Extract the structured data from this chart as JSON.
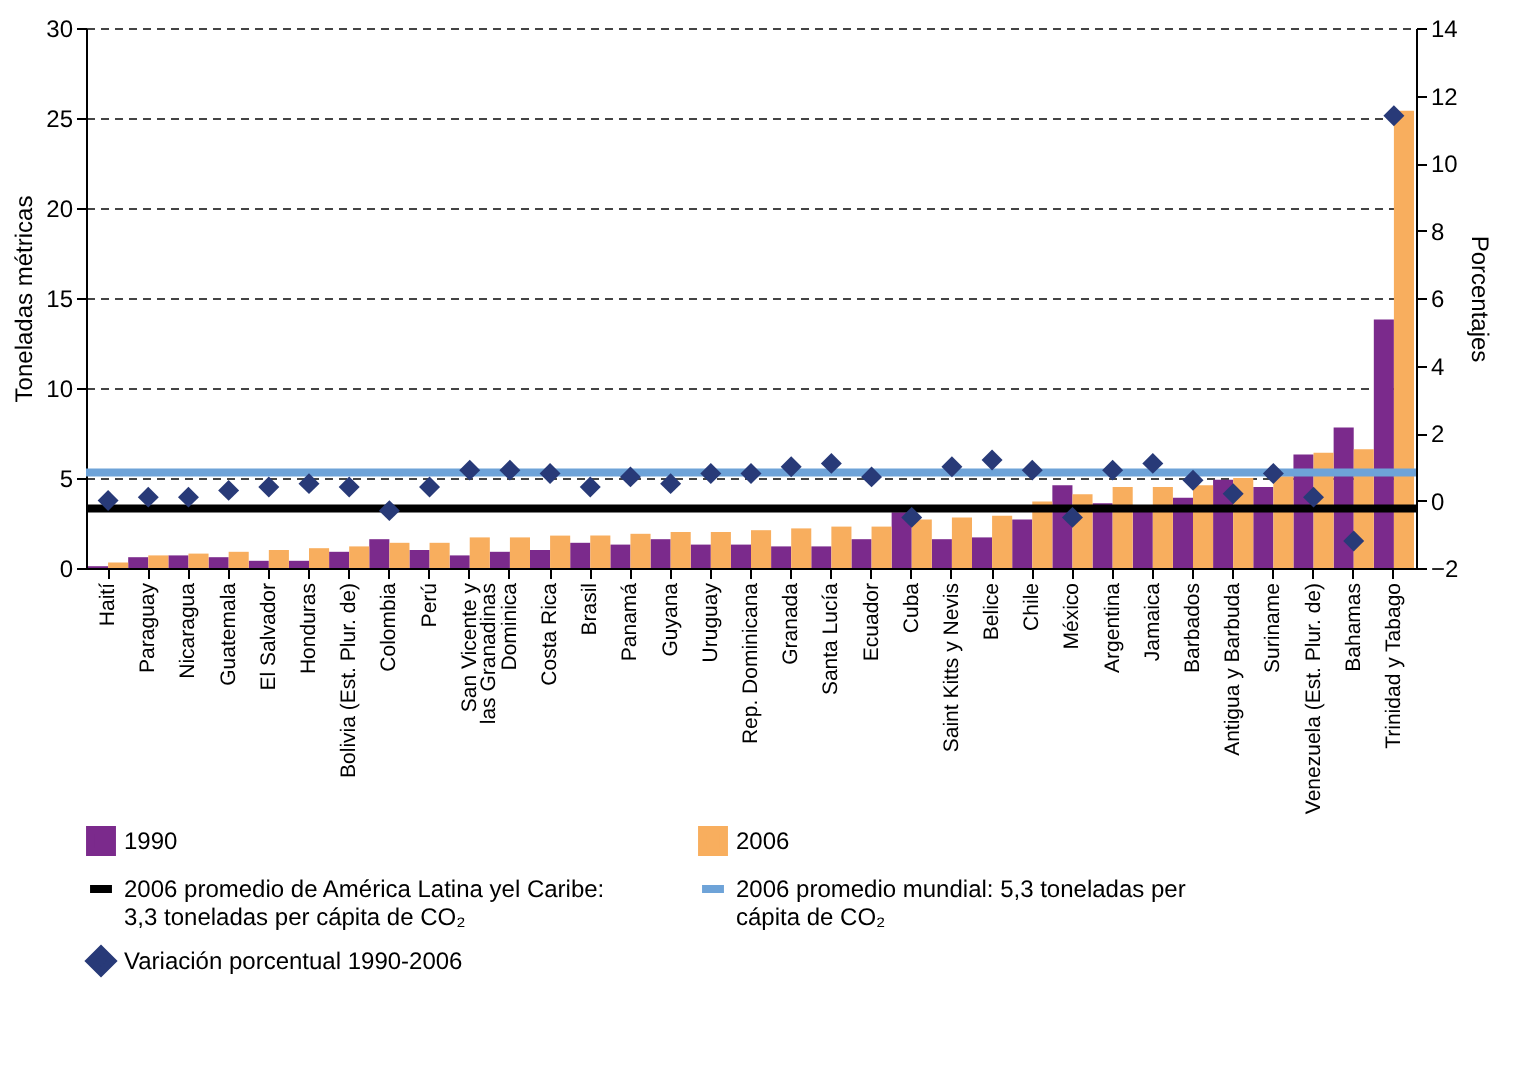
{
  "chart_data": {
    "type": "bar",
    "categories": [
      "Haití",
      "Paraguay",
      "Nicaragua",
      "Guatemala",
      "El Salvador",
      "Honduras",
      "Bolivia (Est. Plur. de)",
      "Colombia",
      "Perú",
      "San Vicente y las Granadinas",
      "Dominica",
      "Costa Rica",
      "Brasil",
      "Panamá",
      "Guyana",
      "Uruguay",
      "Rep. Dominicana",
      "Granada",
      "Santa Lucía",
      "Ecuador",
      "Cuba",
      "Saint Kitts y Nevis",
      "Belice",
      "Chile",
      "México",
      "Argentina",
      "Jamaica",
      "Barbados",
      "Antigua y Barbuda",
      "Suriname",
      "Venezuela (Est. Plur. de)",
      "Bahamas",
      "Trinidad y Tabago"
    ],
    "ylabel": "Toneladas métricas",
    "y2label": "Porcentajes",
    "series": [
      {
        "name": "1990",
        "color": "#7b2a8c",
        "values": [
          0.1,
          0.6,
          0.7,
          0.6,
          0.4,
          0.4,
          0.9,
          1.6,
          1.0,
          0.7,
          0.9,
          1.0,
          1.4,
          1.3,
          1.6,
          1.3,
          1.3,
          1.2,
          1.2,
          1.6,
          3.1,
          1.6,
          1.7,
          2.7,
          4.6,
          3.6,
          3.5,
          3.9,
          4.9,
          4.5,
          6.3,
          7.8,
          13.8
        ]
      },
      {
        "name": "2006",
        "color": "#f8ae5e",
        "values": [
          0.3,
          0.7,
          0.8,
          0.9,
          1.0,
          1.1,
          1.2,
          1.4,
          1.4,
          1.7,
          1.7,
          1.8,
          1.8,
          1.9,
          2.0,
          2.0,
          2.1,
          2.2,
          2.3,
          2.3,
          2.7,
          2.8,
          2.9,
          3.7,
          4.1,
          4.5,
          4.5,
          4.6,
          5.0,
          5.1,
          6.4,
          6.6,
          25.4
        ]
      },
      {
        "name": "Variación porcentual 1990-2006",
        "type": "scatter",
        "axis": "y2",
        "marker": "diamond",
        "color": "#283a78",
        "values": [
          0.0,
          0.1,
          0.1,
          0.3,
          0.4,
          0.5,
          0.4,
          -0.3,
          0.4,
          0.9,
          0.9,
          0.8,
          0.4,
          0.7,
          0.5,
          0.8,
          0.8,
          1.0,
          1.1,
          0.7,
          -0.5,
          1.0,
          1.2,
          0.9,
          -0.5,
          0.9,
          1.1,
          0.6,
          0.2,
          0.8,
          0.1,
          -1.2,
          11.4
        ]
      }
    ],
    "ref_lines": [
      {
        "axis": "y",
        "value": 3.3,
        "label": "2006 promedio de América Latina yel Caribe: 3,3 toneladas per cápita de CO₂",
        "color": "#000000"
      },
      {
        "axis": "y",
        "value": 5.3,
        "label": "2006 promedio mundial: 5,3 toneladas per cápita de CO₂",
        "color": "#6ea3d8"
      }
    ],
    "ylim": [
      0,
      30
    ],
    "yticks": [
      0,
      5,
      10,
      15,
      20,
      25,
      30
    ],
    "y2lim": [
      -2,
      14
    ],
    "y2ticks": [
      -2,
      0,
      2,
      4,
      6,
      8,
      10,
      12,
      14
    ],
    "grid": "y",
    "legend": "bottom"
  }
}
